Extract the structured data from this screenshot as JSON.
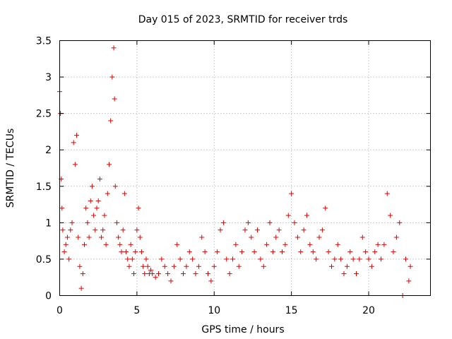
{
  "chart_data": {
    "type": "scatter",
    "title": "Day 015 of 2023, SRMTID for receiver trds",
    "xlabel": "GPS time / hours",
    "ylabel": "SRMTID / TECUs",
    "xlim": [
      0,
      24
    ],
    "ylim": [
      0,
      3.5
    ],
    "xticks": [
      "0",
      "5",
      "10",
      "15",
      "20"
    ],
    "yticks": [
      "0",
      "0.5",
      "1",
      "1.5",
      "2",
      "2.5",
      "3",
      "3.5"
    ],
    "grid": true,
    "marker": "+",
    "color": "#e00000",
    "series": [
      {
        "name": "SRMTID",
        "x": [
          0.0,
          0.05,
          0.1,
          0.15,
          0.2,
          0.3,
          0.4,
          0.5,
          0.6,
          0.7,
          0.8,
          0.9,
          1.0,
          1.1,
          1.2,
          1.3,
          1.4,
          1.5,
          1.6,
          1.7,
          1.8,
          1.9,
          2.0,
          2.1,
          2.2,
          2.3,
          2.4,
          2.5,
          2.6,
          2.7,
          2.8,
          2.9,
          3.0,
          3.1,
          3.2,
          3.3,
          3.4,
          3.5,
          3.55,
          3.6,
          3.7,
          3.8,
          3.9,
          4.0,
          4.1,
          4.2,
          4.3,
          4.4,
          4.5,
          4.6,
          4.7,
          4.8,
          4.9,
          5.0,
          5.1,
          5.2,
          5.3,
          5.4,
          5.5,
          5.6,
          5.7,
          5.8,
          5.9,
          6.0,
          6.2,
          6.4,
          6.6,
          6.8,
          7.0,
          7.2,
          7.4,
          7.6,
          7.8,
          8.0,
          8.2,
          8.4,
          8.6,
          8.8,
          9.0,
          9.2,
          9.4,
          9.6,
          9.8,
          10.0,
          10.2,
          10.4,
          10.6,
          10.8,
          11.0,
          11.2,
          11.4,
          11.6,
          11.8,
          12.0,
          12.2,
          12.4,
          12.6,
          12.8,
          13.0,
          13.2,
          13.4,
          13.6,
          13.8,
          14.0,
          14.2,
          14.4,
          14.6,
          14.8,
          15.0,
          15.2,
          15.4,
          15.6,
          15.8,
          16.0,
          16.2,
          16.4,
          16.6,
          16.8,
          17.0,
          17.2,
          17.4,
          17.6,
          17.8,
          18.0,
          18.2,
          18.4,
          18.6,
          18.8,
          19.0,
          19.2,
          19.4,
          19.6,
          19.8,
          20.0,
          20.2,
          20.4,
          20.6,
          20.8,
          21.0,
          21.2,
          21.4,
          21.6,
          21.8,
          22.0,
          22.2,
          22.4,
          22.6,
          22.7
        ],
        "y": [
          2.8,
          2.5,
          1.6,
          1.2,
          0.9,
          0.6,
          0.7,
          0.8,
          0.5,
          0.9,
          1.0,
          2.1,
          1.8,
          2.2,
          0.8,
          0.4,
          0.1,
          0.3,
          0.7,
          1.2,
          1.0,
          0.8,
          1.3,
          1.5,
          1.1,
          0.9,
          1.2,
          1.3,
          1.6,
          0.8,
          0.9,
          1.1,
          0.7,
          1.4,
          1.8,
          2.4,
          3.0,
          3.4,
          2.7,
          1.5,
          1.0,
          0.8,
          0.7,
          0.6,
          0.9,
          1.4,
          0.6,
          0.5,
          0.4,
          0.7,
          0.5,
          0.3,
          0.6,
          0.9,
          1.2,
          0.8,
          0.6,
          0.4,
          0.3,
          0.5,
          0.4,
          0.3,
          0.35,
          0.3,
          0.25,
          0.3,
          0.5,
          0.4,
          0.3,
          0.2,
          0.4,
          0.7,
          0.5,
          0.3,
          0.4,
          0.6,
          0.5,
          0.3,
          0.4,
          0.8,
          0.6,
          0.3,
          0.2,
          0.4,
          0.6,
          0.9,
          1.0,
          0.5,
          0.3,
          0.5,
          0.7,
          0.4,
          0.6,
          0.9,
          1.0,
          0.8,
          0.6,
          0.9,
          0.5,
          0.4,
          0.7,
          1.0,
          0.6,
          0.8,
          0.9,
          0.6,
          0.7,
          1.1,
          1.4,
          1.0,
          0.8,
          0.6,
          0.9,
          1.1,
          0.7,
          0.6,
          0.5,
          0.8,
          0.9,
          1.2,
          0.6,
          0.4,
          0.5,
          0.7,
          0.5,
          0.3,
          0.4,
          0.6,
          0.5,
          0.3,
          0.5,
          0.8,
          0.6,
          0.5,
          0.4,
          0.6,
          0.7,
          0.5,
          0.7,
          1.4,
          1.1,
          0.6,
          0.8,
          1.0,
          0.0,
          0.5,
          0.2,
          0.4
        ]
      }
    ]
  }
}
